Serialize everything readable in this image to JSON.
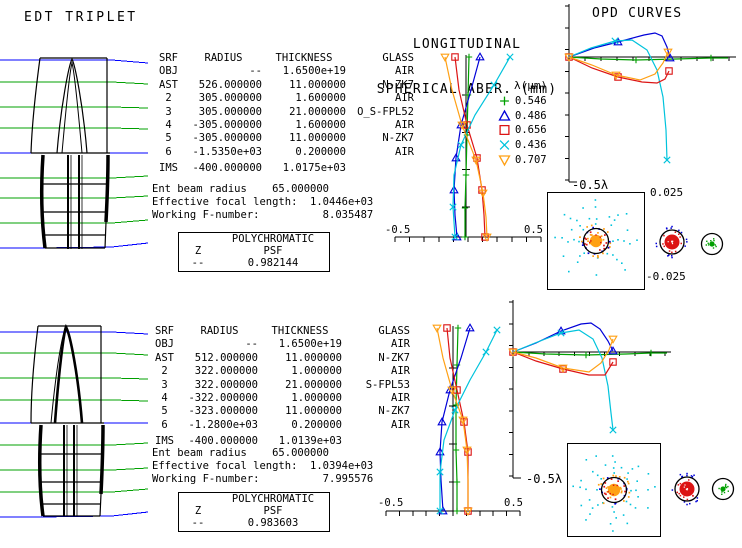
{
  "window_title": "EDT TRIPLET",
  "colors": {
    "green": "#00A000",
    "blue": "#0000D8",
    "red": "#DC1414",
    "cyan": "#00C3DC",
    "orange": "#FFA014",
    "ray_blue": "#0000FF",
    "ray_green": "#00A000",
    "black": "#000000"
  },
  "legend": {
    "title": "λ(μm)",
    "entries": [
      {
        "marker": "plus",
        "color": "green",
        "value": "0.546"
      },
      {
        "marker": "triangle-up",
        "color": "blue",
        "value": "0.486"
      },
      {
        "marker": "square",
        "color": "red",
        "value": "0.656"
      },
      {
        "marker": "x",
        "color": "cyan",
        "value": "0.436"
      },
      {
        "marker": "triangle-down",
        "color": "orange",
        "value": "0.707"
      }
    ]
  },
  "lsa_title": {
    "line1": "LONGITUDINAL",
    "line2": "SPHERICAL ABER. (mm)"
  },
  "opd_title": "OPD CURVES",
  "axis_labels": {
    "lsa_min": "-0.5",
    "lsa_max": "0.5",
    "opd_scale": "-0.5λ",
    "spot_max": "0.025",
    "spot_min": "-0.025"
  },
  "config1": {
    "table": {
      "headers": [
        "SRF",
        "RADIUS",
        "THICKNESS",
        "GLASS"
      ],
      "rows": [
        [
          "OBJ",
          "--",
          "1.6500e+19",
          "AIR"
        ],
        [
          "AST",
          "526.000000",
          "11.000000",
          "N-ZK7"
        ],
        [
          "2",
          "305.000000",
          "1.600000",
          "AIR"
        ],
        [
          "3",
          "305.000000",
          "21.000000",
          "O_S-FPL52"
        ],
        [
          "4",
          "-305.000000",
          "1.600000",
          "AIR"
        ],
        [
          "5",
          "-305.000000",
          "11.000000",
          "N-ZK7"
        ],
        [
          "6",
          "-1.5350e+03",
          "0.200000",
          "AIR"
        ],
        [
          "IMS",
          "-400.000000",
          "1.0175e+03",
          ""
        ]
      ]
    },
    "info_lines": [
      "Ent beam radius    65.000000",
      "Effective focal length:  1.0446e+03",
      "Working F-number:          8.035487"
    ],
    "psf": {
      "header": "POLYCHROMATIC",
      "row_label": "Z",
      "col_label": "PSF",
      "row_value": "--",
      "value": "0.982144"
    }
  },
  "config2": {
    "table": {
      "headers": [
        "SRF",
        "RADIUS",
        "THICKNESS",
        "GLASS"
      ],
      "rows": [
        [
          "OBJ",
          "--",
          "1.6500e+19",
          "AIR"
        ],
        [
          "AST",
          "512.000000",
          "11.000000",
          "N-ZK7"
        ],
        [
          "2",
          "322.000000",
          "1.000000",
          "AIR"
        ],
        [
          "3",
          "322.000000",
          "21.000000",
          "S-FPL53"
        ],
        [
          "4",
          "-322.000000",
          "1.000000",
          "AIR"
        ],
        [
          "5",
          "-323.000000",
          "11.000000",
          "N-ZK7"
        ],
        [
          "6",
          "-1.2800e+03",
          "0.200000",
          "AIR"
        ],
        [
          "IMS",
          "-400.000000",
          "1.0139e+03",
          ""
        ]
      ]
    },
    "info_lines": [
      "Ent beam radius    65.000000",
      "Effective focal length:  1.0394e+03",
      "Working F-number:          7.995576"
    ],
    "psf": {
      "header": "POLYCHROMATIC",
      "row_label": "Z",
      "col_label": "PSF",
      "row_value": "--",
      "value": "0.983603"
    }
  },
  "plots": {
    "lsa1": {
      "series": [
        {
          "wl": "0.546",
          "color": "green",
          "marker": "plus",
          "pts": [
            [
              86,
              12
            ],
            [
              85,
              50
            ],
            [
              84,
              90
            ],
            [
              83,
              130
            ],
            [
              82,
              163
            ],
            [
              82,
              192
            ]
          ],
          "marker_at": [
            0,
            1,
            2,
            3,
            4,
            5
          ]
        },
        {
          "wl": "0.486",
          "color": "blue",
          "marker": "triangle-up",
          "pts": [
            [
              97,
              12
            ],
            [
              88,
              45
            ],
            [
              78,
              80
            ],
            [
              73,
              113
            ],
            [
              71,
              145
            ],
            [
              72,
              170
            ],
            [
              74,
              192
            ]
          ],
          "marker_at": [
            0,
            2,
            3,
            4,
            6
          ]
        },
        {
          "wl": "0.656",
          "color": "red",
          "marker": "square",
          "pts": [
            [
              72,
              12
            ],
            [
              76,
              45
            ],
            [
              84,
              80
            ],
            [
              94,
              113
            ],
            [
              99,
              145
            ],
            [
              101,
              170
            ],
            [
              102,
              192
            ]
          ],
          "marker_at": [
            0,
            2,
            3,
            4,
            6
          ]
        },
        {
          "wl": "0.436",
          "color": "cyan",
          "marker": "x",
          "pts": [
            [
              127,
              12
            ],
            [
              111,
              40
            ],
            [
              92,
              70
            ],
            [
              78,
              100
            ],
            [
              71,
              130
            ],
            [
              70,
              162
            ],
            [
              72,
              192
            ]
          ],
          "marker_at": [
            0,
            1,
            3,
            5,
            6
          ]
        },
        {
          "wl": "0.707",
          "color": "orange",
          "marker": "triangle-down",
          "pts": [
            [
              62,
              12
            ],
            [
              69,
              45
            ],
            [
              79,
              80
            ],
            [
              93,
              115
            ],
            [
              100,
              148
            ],
            [
              103,
              172
            ],
            [
              104,
              192
            ]
          ],
          "marker_at": [
            0,
            2,
            3,
            4,
            6
          ]
        }
      ]
    },
    "lsa2": {
      "series": [
        {
          "wl": "0.546",
          "color": "green",
          "marker": "plus",
          "pts": [
            [
              80,
              18
            ],
            [
              79,
              55
            ],
            [
              78,
              95
            ],
            [
              78,
              140
            ],
            [
              79,
              172
            ],
            [
              79,
              201
            ]
          ],
          "marker_at": [
            0,
            1,
            2,
            3,
            4,
            5
          ]
        },
        {
          "wl": "0.486",
          "color": "blue",
          "marker": "triangle-up",
          "pts": [
            [
              92,
              18
            ],
            [
              83,
              48
            ],
            [
              72,
              80
            ],
            [
              64,
              112
            ],
            [
              62,
              142
            ],
            [
              63,
              170
            ],
            [
              65,
              201
            ]
          ],
          "marker_at": [
            0,
            2,
            3,
            4,
            6
          ]
        },
        {
          "wl": "0.656",
          "color": "red",
          "marker": "square",
          "pts": [
            [
              69,
              18
            ],
            [
              72,
              48
            ],
            [
              79,
              80
            ],
            [
              86,
              112
            ],
            [
              90,
              142
            ],
            [
              90,
              170
            ],
            [
              90,
              201
            ]
          ],
          "marker_at": [
            0,
            2,
            3,
            4,
            6
          ]
        },
        {
          "wl": "0.436",
          "color": "cyan",
          "marker": "x",
          "pts": [
            [
              119,
              20
            ],
            [
              108,
              42
            ],
            [
              92,
              70
            ],
            [
              77,
              100
            ],
            [
              66,
              130
            ],
            [
              62,
              162
            ],
            [
              62,
              201
            ]
          ],
          "marker_at": [
            0,
            1,
            3,
            5,
            6
          ]
        },
        {
          "wl": "0.707",
          "color": "orange",
          "marker": "triangle-down",
          "pts": [
            [
              59,
              18
            ],
            [
              65,
              48
            ],
            [
              74,
              80
            ],
            [
              85,
              110
            ],
            [
              89,
              140
            ],
            [
              90,
              170
            ],
            [
              90,
              201
            ]
          ],
          "marker_at": [
            0,
            2,
            3,
            4,
            6
          ]
        }
      ]
    },
    "opd1": {
      "series": [
        {
          "wl": "0.546",
          "color": "green",
          "marker": "plus",
          "pts": [
            [
              13,
              55
            ],
            [
              45,
              57
            ],
            [
              80,
              58
            ],
            [
              120,
              57
            ],
            [
              155,
              56
            ],
            [
              172,
              56
            ]
          ],
          "marker_at": [
            2,
            4
          ]
        },
        {
          "wl": "0.486",
          "color": "blue",
          "marker": "triangle-up",
          "pts": [
            [
              13,
              55
            ],
            [
              38,
              46
            ],
            [
              62,
              40
            ],
            [
              88,
              33
            ],
            [
              99,
              31
            ],
            [
              106,
              34
            ],
            [
              111,
              45
            ],
            [
              114,
              56
            ]
          ],
          "marker_at": [
            2,
            7
          ]
        },
        {
          "wl": "0.436",
          "color": "cyan",
          "marker": "x",
          "pts": [
            [
              13,
              55
            ],
            [
              35,
              46
            ],
            [
              59,
              39
            ],
            [
              76,
              38
            ],
            [
              91,
              48
            ],
            [
              101,
              68
            ],
            [
              107,
              95
            ],
            [
              110,
              128
            ],
            [
              111,
              158
            ]
          ],
          "marker_at": [
            2,
            8
          ]
        },
        {
          "wl": "0.656",
          "color": "red",
          "marker": "square",
          "pts": [
            [
              13,
              55
            ],
            [
              36,
              66
            ],
            [
              62,
              75
            ],
            [
              86,
              80
            ],
            [
              101,
              81
            ],
            [
              109,
              77
            ],
            [
              113,
              69
            ]
          ],
          "marker_at": [
            0,
            2,
            6
          ]
        },
        {
          "wl": "0.707",
          "color": "orange",
          "marker": "triangle-down",
          "pts": [
            [
              13,
              55
            ],
            [
              36,
              63
            ],
            [
              60,
              73
            ],
            [
              84,
              78
            ],
            [
              99,
              72
            ],
            [
              107,
              61
            ],
            [
              112,
              50
            ]
          ],
          "marker_at": [
            0,
            2,
            6
          ]
        }
      ]
    },
    "opd2": {
      "series": [
        {
          "wl": "0.546",
          "color": "green",
          "marker": "plus",
          "pts": [
            [
              12,
              54
            ],
            [
              45,
              56
            ],
            [
              85,
              57
            ],
            [
              125,
              56
            ],
            [
              150,
              55
            ],
            [
              166,
              55
            ]
          ],
          "marker_at": [
            2,
            4
          ]
        },
        {
          "wl": "0.486",
          "color": "blue",
          "marker": "triangle-up",
          "pts": [
            [
              12,
              54
            ],
            [
              35,
              45
            ],
            [
              60,
              33
            ],
            [
              80,
              26
            ],
            [
              90,
              25
            ],
            [
              99,
              31
            ],
            [
              107,
              43
            ],
            [
              112,
              53
            ]
          ],
          "marker_at": [
            2,
            7
          ]
        },
        {
          "wl": "0.436",
          "color": "cyan",
          "marker": "x",
          "pts": [
            [
              12,
              54
            ],
            [
              34,
              45
            ],
            [
              60,
              35
            ],
            [
              78,
              32
            ],
            [
              92,
              41
            ],
            [
              101,
              60
            ],
            [
              107,
              88
            ],
            [
              110,
              115
            ],
            [
              112,
              132
            ]
          ],
          "marker_at": [
            2,
            8
          ]
        },
        {
          "wl": "0.656",
          "color": "red",
          "marker": "square",
          "pts": [
            [
              12,
              54
            ],
            [
              35,
              63
            ],
            [
              62,
              71
            ],
            [
              88,
              77
            ],
            [
              104,
              77
            ],
            [
              112,
              64
            ]
          ],
          "marker_at": [
            0,
            2,
            5
          ]
        },
        {
          "wl": "0.707",
          "color": "orange",
          "marker": "triangle-down",
          "pts": [
            [
              12,
              54
            ],
            [
              35,
              60
            ],
            [
              62,
              70
            ],
            [
              88,
              74
            ],
            [
              100,
              65
            ],
            [
              108,
              52
            ],
            [
              112,
              41
            ]
          ],
          "marker_at": [
            0,
            2,
            6
          ]
        }
      ]
    }
  }
}
